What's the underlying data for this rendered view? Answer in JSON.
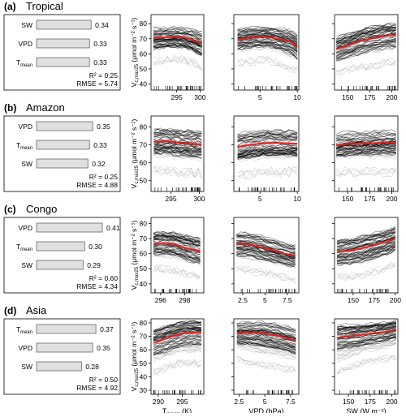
{
  "panels": [
    {
      "tag": "(a)",
      "region": "Tropical",
      "bars": [
        {
          "label": "SW",
          "value": 0.34,
          "text": "0.34"
        },
        {
          "label": "VPD",
          "value": 0.33,
          "text": "0.33"
        },
        {
          "label": "Tmean",
          "value": 0.33,
          "text": "0.33"
        }
      ],
      "r2": "R² = 0.25",
      "rmse": "RMSE = 5.74",
      "yticks": [
        40,
        50,
        60,
        70,
        80
      ],
      "ylim": [
        36,
        86
      ],
      "x_axes": [
        {
          "lim": [
            289.5,
            300.8
          ],
          "ticks": [
            295,
            300
          ],
          "mean": [
            [
              290,
              70.5
            ],
            [
              292,
              70.9
            ],
            [
              294,
              71.2
            ],
            [
              296,
              71.1
            ],
            [
              298,
              69.8
            ],
            [
              299.5,
              67.8
            ],
            [
              300.4,
              67.2
            ]
          ],
          "spread": [
            [
              290,
              62,
              78
            ],
            [
              294,
              64,
              79
            ],
            [
              298,
              62,
              78
            ],
            [
              300.4,
              58,
              77
            ]
          ]
        },
        {
          "lim": [
            1.5,
            10.2
          ],
          "ticks": [
            5,
            10
          ],
          "mean": [
            [
              2,
              69.5
            ],
            [
              4,
              70.8
            ],
            [
              6,
              71.2
            ],
            [
              8,
              69.4
            ],
            [
              9.3,
              67.5
            ],
            [
              10,
              64.5
            ]
          ],
          "spread": [
            [
              2,
              61,
              78
            ],
            [
              6,
              63,
              79
            ],
            [
              10,
              55,
              75
            ]
          ]
        },
        {
          "lim": [
            135,
            207
          ],
          "ticks": [
            150,
            175,
            200
          ],
          "mean": [
            [
              137,
              63
            ],
            [
              150,
              65.5
            ],
            [
              165,
              68.5
            ],
            [
              180,
              70.5
            ],
            [
              195,
              72
            ],
            [
              205,
              72.5
            ]
          ],
          "spread": [
            [
              137,
              55,
              74
            ],
            [
              170,
              59,
              78
            ],
            [
              205,
              62,
              80
            ]
          ]
        }
      ]
    },
    {
      "tag": "(b)",
      "region": "Amazon",
      "bars": [
        {
          "label": "VPD",
          "value": 0.35,
          "text": "0.35"
        },
        {
          "label": "Tmean",
          "value": 0.33,
          "text": "0.33"
        },
        {
          "label": "SW",
          "value": 0.32,
          "text": "0.32"
        }
      ],
      "r2": "R² = 0.25",
      "rmse": "RMSE = 4.88",
      "yticks": [
        50,
        60,
        70,
        80
      ],
      "ylim": [
        44,
        86
      ],
      "x_axes": [
        {
          "lim": [
            291.5,
            300.8
          ],
          "ticks": [
            295,
            300
          ],
          "mean": [
            [
              292,
              71.5
            ],
            [
              294,
              72
            ],
            [
              296,
              71.2
            ],
            [
              298,
              70.6
            ],
            [
              300.4,
              70.2
            ]
          ],
          "spread": [
            [
              292,
              63,
              79
            ],
            [
              296,
              62,
              79
            ],
            [
              300.4,
              61,
              78
            ]
          ]
        },
        {
          "lim": [
            1.5,
            10.2
          ],
          "ticks": [
            5,
            10
          ],
          "mean": [
            [
              2,
              68.8
            ],
            [
              4,
              70.2
            ],
            [
              6,
              71
            ],
            [
              8,
              71
            ],
            [
              10,
              70.6
            ]
          ],
          "spread": [
            [
              2,
              60,
              77
            ],
            [
              6,
              62,
              79
            ],
            [
              10,
              62,
              78
            ]
          ]
        },
        {
          "lim": [
            135,
            207
          ],
          "ticks": [
            150,
            175,
            200
          ],
          "mean": [
            [
              137,
              69.5
            ],
            [
              150,
              70.5
            ],
            [
              165,
              70.5
            ],
            [
              180,
              71
            ],
            [
              195,
              71.3
            ],
            [
              205,
              71
            ]
          ],
          "spread": [
            [
              137,
              62,
              78
            ],
            [
              170,
              62,
              78
            ],
            [
              205,
              62,
              78
            ]
          ]
        }
      ]
    },
    {
      "tag": "(c)",
      "region": "Congo",
      "bars": [
        {
          "label": "VPD",
          "value": 0.41,
          "text": "0.41"
        },
        {
          "label": "Tmean",
          "value": 0.3,
          "text": "0.30"
        },
        {
          "label": "SW",
          "value": 0.29,
          "text": "0.29"
        }
      ],
      "r2": "R² = 0.60",
      "rmse": "RMSE = 4.34",
      "yticks": [
        40,
        50,
        60,
        70,
        80
      ],
      "ylim": [
        34,
        84
      ],
      "x_axes": [
        {
          "lim": [
            295.2,
            299.6
          ],
          "ticks": [
            296,
            298
          ],
          "mean": [
            [
              295.4,
              66.5
            ],
            [
              296.3,
              66.8
            ],
            [
              297.2,
              66
            ],
            [
              298.2,
              63.5
            ],
            [
              299.3,
              61.5
            ]
          ],
          "spread": [
            [
              295.4,
              57,
              74
            ],
            [
              297.2,
              56,
              74
            ],
            [
              299.3,
              52,
              72
            ]
          ]
        },
        {
          "lim": [
            1.5,
            8.8
          ],
          "ticks": [
            2.5,
            5.0,
            7.5
          ],
          "mean": [
            [
              1.8,
              66.5
            ],
            [
              3.2,
              66.2
            ],
            [
              4.5,
              64.2
            ],
            [
              5.8,
              62.3
            ],
            [
              7,
              60.2
            ],
            [
              8.4,
              58.6
            ]
          ],
          "spread": [
            [
              1.8,
              57,
              75
            ],
            [
              5,
              54,
              72
            ],
            [
              8.4,
              50,
              67
            ]
          ]
        },
        {
          "lim": [
            128,
            203
          ],
          "ticks": [
            150,
            175,
            200
          ],
          "mean": [
            [
              131,
              61
            ],
            [
              145,
              61.8
            ],
            [
              160,
              63.5
            ],
            [
              175,
              65.5
            ],
            [
              190,
              67.8
            ],
            [
              200,
              70
            ]
          ],
          "spread": [
            [
              131,
              51,
              70
            ],
            [
              165,
              53,
              73
            ],
            [
              200,
              60,
              78
            ]
          ]
        }
      ]
    },
    {
      "tag": "(d)",
      "region": "Asia",
      "bars": [
        {
          "label": "Tmean",
          "value": 0.37,
          "text": "0.37"
        },
        {
          "label": "VPD",
          "value": 0.35,
          "text": "0.35"
        },
        {
          "label": "SW",
          "value": 0.28,
          "text": "0.28"
        }
      ],
      "r2": "R² = 0.50",
      "rmse": "RMSE = 4.92",
      "yticks": [
        30,
        40,
        50,
        60,
        70,
        80
      ],
      "ylim": [
        27,
        83
      ],
      "x_axes": [
        {
          "lim": [
            288.5,
            299.5
          ],
          "ticks": [
            290,
            295
          ],
          "mean": [
            [
              289,
              65
            ],
            [
              291,
              67.5
            ],
            [
              293,
              70
            ],
            [
              295,
              72
            ],
            [
              297,
              72.8
            ],
            [
              299,
              72.5
            ]
          ],
          "spread": [
            [
              289,
              50,
              74
            ],
            [
              294,
              57,
              79
            ],
            [
              299,
              57,
              78
            ]
          ]
        },
        {
          "lim": [
            2,
            8.3
          ],
          "ticks": [
            2.5,
            5.0,
            7.5
          ],
          "mean": [
            [
              2.3,
              72.5
            ],
            [
              3.5,
              72.8
            ],
            [
              5,
              72
            ],
            [
              6.5,
              70
            ],
            [
              8,
              66.8
            ]
          ],
          "spread": [
            [
              2.3,
              60,
              78
            ],
            [
              5,
              56,
              78
            ],
            [
              8,
              52,
              74
            ]
          ]
        },
        {
          "lim": [
            134,
            207
          ],
          "ticks": [
            150,
            175,
            200
          ],
          "mean": [
            [
              137,
              69
            ],
            [
              150,
              70
            ],
            [
              165,
              71
            ],
            [
              180,
              72.5
            ],
            [
              195,
              73.5
            ],
            [
              205,
              75
            ]
          ],
          "spread": [
            [
              137,
              50,
              74
            ],
            [
              170,
              58,
              77
            ],
            [
              205,
              62,
              79
            ]
          ]
        }
      ]
    }
  ],
  "y_axis_label": "V_c,max25 (μmol m⁻² s⁻¹)",
  "x_axis_labels": [
    "Tmean (K)",
    "VPD (hPa)",
    "SW (W m⁻²)"
  ],
  "colors": {
    "bar_fill": "#e0e0e0",
    "bar_edge": "#555555",
    "mean_line": "#e8211c",
    "lines": "#000000"
  },
  "chart_data": {
    "type": "line",
    "description_series": [
      "mean partial dependence"
    ],
    "importance": {
      "Tropical": {
        "SW": 0.34,
        "VPD": 0.33,
        "Tmean": 0.33,
        "R2": 0.25,
        "RMSE": 5.74
      },
      "Amazon": {
        "VPD": 0.35,
        "Tmean": 0.33,
        "SW": 0.32,
        "R2": 0.25,
        "RMSE": 4.88
      },
      "Congo": {
        "VPD": 0.41,
        "Tmean": 0.3,
        "SW": 0.29,
        "R2": 0.6,
        "RMSE": 4.34
      },
      "Asia": {
        "Tmean": 0.37,
        "VPD": 0.35,
        "SW": 0.28,
        "R2": 0.5,
        "RMSE": 4.92
      }
    },
    "grid": false
  }
}
